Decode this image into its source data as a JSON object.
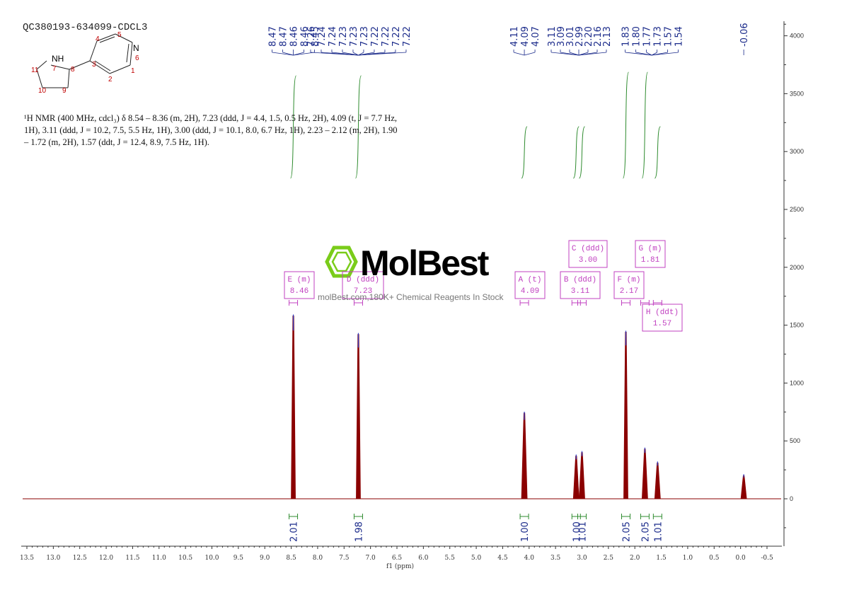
{
  "sample_id": "QC380193-634099-CDCL3",
  "structure": {
    "atoms": [
      {
        "label": "NH",
        "color": "#000000"
      },
      {
        "label": "7",
        "color": "#c00000"
      },
      {
        "label": "8",
        "color": "#c00000"
      },
      {
        "label": "3",
        "color": "#c00000"
      },
      {
        "label": "4",
        "color": "#c00000"
      },
      {
        "label": "5",
        "color": "#c00000"
      },
      {
        "label": "N",
        "color": "#000000"
      },
      {
        "label": "6",
        "color": "#c00000"
      },
      {
        "label": "1",
        "color": "#c00000"
      },
      {
        "label": "2",
        "color": "#c00000"
      },
      {
        "label": "9",
        "color": "#c00000"
      },
      {
        "label": "10",
        "color": "#c00000"
      },
      {
        "label": "11",
        "color": "#c00000"
      }
    ]
  },
  "report": {
    "line1": "¹H NMR (400 MHz, cdcl₃) δ 8.54 – 8.36 (m, 2H), 7.23 (ddd, J = 4.4, 1.5, 0.5 Hz, 2H), 4.09 (t, J = 7.7 Hz,",
    "line2": "1H), 3.11 (ddd, J = 10.2, 7.5, 5.5 Hz, 1H), 3.00 (ddd, J = 10.1, 8.0, 6.7 Hz, 1H), 2.23 – 2.12 (m, 2H), 1.90",
    "line3": "– 1.72 (m, 2H), 1.57 (ddt, J = 12.4, 8.9, 7.5 Hz, 1H)."
  },
  "watermark": {
    "brand": "MolBest",
    "tagline": "molBest.com,180K+ Chemical Reagents In Stock"
  },
  "colors": {
    "spectrum": "#8b0000",
    "integral": "#2e8b2e",
    "peak_label": "#1a2a8a",
    "multiplet_box": "#c040c0",
    "axis": "#333333",
    "logo": "#7acc1a"
  },
  "chart_data": {
    "type": "line",
    "xlabel": "f1 (ppm)",
    "ylabel": "",
    "xlim": [
      13.5,
      -0.5
    ],
    "ylim": [
      -400,
      4100
    ],
    "x_reversed": true,
    "x_ticks": [
      "13.5",
      "13.0",
      "12.5",
      "12.0",
      "11.5",
      "11.0",
      "10.5",
      "10.0",
      "9.5",
      "9.0",
      "8.5",
      "8.0",
      "7.5",
      "7.0",
      "6.5",
      "6.0",
      "5.5",
      "5.0",
      "4.5",
      "4.0",
      "3.5",
      "3.0",
      "2.5",
      "2.0",
      "1.5",
      "1.0",
      "0.5",
      "0.0",
      "-0.5"
    ],
    "y_ticks": [
      0,
      500,
      1000,
      1500,
      2000,
      2500,
      3000,
      3500,
      4000
    ],
    "y_tick_labels": [
      "0",
      "500",
      "1000",
      "1500",
      "2000",
      "2500",
      "3000",
      "3500",
      "4000"
    ],
    "peaks": [
      {
        "ppm": 8.46,
        "height": 1580
      },
      {
        "ppm": 7.23,
        "height": 1420
      },
      {
        "ppm": 4.09,
        "height": 740
      },
      {
        "ppm": 3.11,
        "height": 370
      },
      {
        "ppm": 3.0,
        "height": 400
      },
      {
        "ppm": 2.17,
        "height": 1440
      },
      {
        "ppm": 1.81,
        "height": 430
      },
      {
        "ppm": 1.57,
        "height": 310
      },
      {
        "ppm": -0.06,
        "height": 200
      }
    ],
    "peak_labels": {
      "group1": [
        "8.47",
        "8.47",
        "8.46",
        "8.46",
        "8.45"
      ],
      "group2": [
        "7.26",
        "7.24",
        "7.24",
        "7.23",
        "7.23",
        "7.23",
        "7.22",
        "7.22",
        "7.22",
        "7.22"
      ],
      "group3": [
        "4.11",
        "4.09",
        "4.07"
      ],
      "group4": [
        "3.11",
        "3.09",
        "3.01",
        "2.99",
        "2.20",
        "2.16",
        "2.13"
      ],
      "group5": [
        "1.83",
        "1.80",
        "1.77",
        "1.73",
        "1.57",
        "1.54"
      ],
      "group6": [
        "-0.06"
      ]
    },
    "multiplets": [
      {
        "label": "E (m)",
        "shift": "8.46",
        "ppm": 8.46
      },
      {
        "label": "D (ddd)",
        "shift": "7.23",
        "ppm": 7.23
      },
      {
        "label": "A (t)",
        "shift": "4.09",
        "ppm": 4.09
      },
      {
        "label": "B (ddd)",
        "shift": "3.11",
        "ppm": 3.11
      },
      {
        "label": "C (ddd)",
        "shift": "3.00",
        "ppm": 3.0
      },
      {
        "label": "F (m)",
        "shift": "2.17",
        "ppm": 2.17
      },
      {
        "label": "G (m)",
        "shift": "1.81",
        "ppm": 1.81
      },
      {
        "label": "H (ddt)",
        "shift": "1.57",
        "ppm": 1.57
      }
    ],
    "integrals": [
      {
        "ppm": 8.46,
        "value": "2.01"
      },
      {
        "ppm": 7.23,
        "value": "1.98"
      },
      {
        "ppm": 4.09,
        "value": "1.00"
      },
      {
        "ppm": 3.11,
        "value": "1.00"
      },
      {
        "ppm": 3.0,
        "value": "1.01"
      },
      {
        "ppm": 2.17,
        "value": "2.05"
      },
      {
        "ppm": 1.81,
        "value": "2.05"
      },
      {
        "ppm": 1.57,
        "value": "1.01"
      }
    ]
  }
}
